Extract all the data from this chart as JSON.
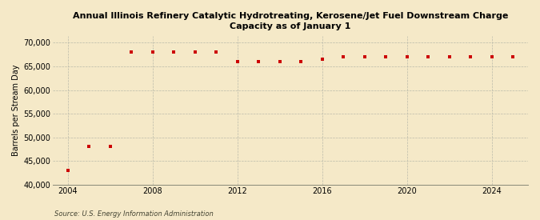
{
  "title": "Annual Illinois Refinery Catalytic Hydrotreating, Kerosene/Jet Fuel Downstream Charge\nCapacity as of January 1",
  "ylabel": "Barrels per Stream Day",
  "source": "Source: U.S. Energy Information Administration",
  "background_color": "#f5e9c8",
  "marker_color": "#cc0000",
  "years": [
    2004,
    2005,
    2006,
    2007,
    2008,
    2009,
    2010,
    2011,
    2012,
    2013,
    2014,
    2015,
    2016,
    2017,
    2018,
    2019,
    2020,
    2021,
    2022,
    2023,
    2024,
    2025
  ],
  "values": [
    43000,
    48000,
    48000,
    68000,
    68000,
    68000,
    68000,
    68000,
    66000,
    66000,
    66000,
    66000,
    66500,
    67000,
    67000,
    67000,
    67000,
    67000,
    67000,
    67000,
    67000,
    67000
  ],
  "ylim": [
    40000,
    71500
  ],
  "yticks": [
    40000,
    45000,
    50000,
    55000,
    60000,
    65000,
    70000
  ],
  "xlim": [
    2003.3,
    2025.7
  ],
  "xticks": [
    2004,
    2008,
    2012,
    2016,
    2020,
    2024
  ]
}
